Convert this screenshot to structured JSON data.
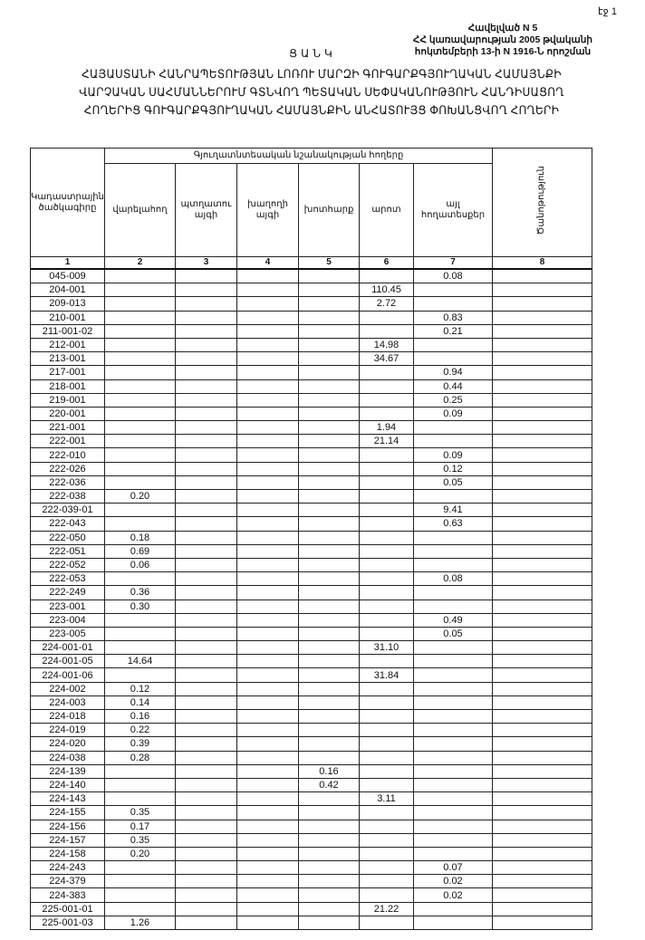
{
  "page_label": "էջ 1",
  "annex": {
    "line1": "Հավելված N 5",
    "line2": "ՀՀ կառավարության 2005 թվականի",
    "line3": "հոկտեմբերի 13-ի N 1916-Ն որոշման"
  },
  "doc_title": "ՑԱՆԿ",
  "heading": {
    "line1": "ՀԱՅԱՍՏԱՆԻ ՀԱՆՐԱՊԵՏՈՒԹՅԱՆ ԼՈՌՈՒ ՄԱՐԶԻ ԳՈՒԳԱՐՔԳՅՈՒՂԱԿԱՆ ՀԱՄԱՅՆՔԻ",
    "line2": "ՎԱՐՉԱԿԱՆ ՍԱՀՄԱՆՆԵՐՈՒՄ ԳՏՆՎՈՂ ՊԵՏԱԿԱՆ ՍԵՓԱԿԱՆՈՒԹՅՈՒՆ ՀԱՆԴԻՍԱՑՈՂ",
    "line3": "ՀՈՂԵՐԻՑ ԳՈՒԳԱՐՔԳՅՈՒՂԱԿԱՆ ՀԱՄԱՅՆՔԻՆ ԱՆՀԱՏՈՒՅՑ ՓՈԽԱՆՑՎՈՂ ՀՈՂԵՐԻ"
  },
  "table": {
    "group_header": "Գյուղատնտեսական նշանակության հողերը",
    "columns": [
      "Կադաստրային ծածկագիրը",
      "վարելահող",
      "պտղատու այգի",
      "խաղողի այգի",
      "խոտհարք",
      "արոտ",
      "այլ հողատեսքեր",
      "Ծանոթություն"
    ],
    "column_numbers": [
      "1",
      "2",
      "3",
      "4",
      "5",
      "6",
      "7",
      "8"
    ],
    "rows": [
      [
        "045-009",
        "",
        "",
        "",
        "",
        "",
        "0.08"
      ],
      [
        "204-001",
        "",
        "",
        "",
        "",
        "110.45",
        ""
      ],
      [
        "209-013",
        "",
        "",
        "",
        "",
        "2.72",
        ""
      ],
      [
        "210-001",
        "",
        "",
        "",
        "",
        "",
        "0.83"
      ],
      [
        "211-001-02",
        "",
        "",
        "",
        "",
        "",
        "0.21"
      ],
      [
        "212-001",
        "",
        "",
        "",
        "",
        "14.98",
        ""
      ],
      [
        "213-001",
        "",
        "",
        "",
        "",
        "34.67",
        ""
      ],
      [
        "217-001",
        "",
        "",
        "",
        "",
        "",
        "0.94"
      ],
      [
        "218-001",
        "",
        "",
        "",
        "",
        "",
        "0.44"
      ],
      [
        "219-001",
        "",
        "",
        "",
        "",
        "",
        "0.25"
      ],
      [
        "220-001",
        "",
        "",
        "",
        "",
        "",
        "0.09"
      ],
      [
        "221-001",
        "",
        "",
        "",
        "",
        "1.94",
        ""
      ],
      [
        "222-001",
        "",
        "",
        "",
        "",
        "21.14",
        ""
      ],
      [
        "222-010",
        "",
        "",
        "",
        "",
        "",
        "0.09"
      ],
      [
        "222-026",
        "",
        "",
        "",
        "",
        "",
        "0.12"
      ],
      [
        "222-036",
        "",
        "",
        "",
        "",
        "",
        "0.05"
      ],
      [
        "222-038",
        "0.20",
        "",
        "",
        "",
        "",
        ""
      ],
      [
        "222-039-01",
        "",
        "",
        "",
        "",
        "",
        "9.41"
      ],
      [
        "222-043",
        "",
        "",
        "",
        "",
        "",
        "0.63"
      ],
      [
        "222-050",
        "0.18",
        "",
        "",
        "",
        "",
        ""
      ],
      [
        "222-051",
        "0.69",
        "",
        "",
        "",
        "",
        ""
      ],
      [
        "222-052",
        "0.06",
        "",
        "",
        "",
        "",
        ""
      ],
      [
        "222-053",
        "",
        "",
        "",
        "",
        "",
        "0.08"
      ],
      [
        "222-249",
        "0.36",
        "",
        "",
        "",
        "",
        ""
      ],
      [
        "223-001",
        "0.30",
        "",
        "",
        "",
        "",
        ""
      ],
      [
        "223-004",
        "",
        "",
        "",
        "",
        "",
        "0.49"
      ],
      [
        "223-005",
        "",
        "",
        "",
        "",
        "",
        "0.05"
      ],
      [
        "224-001-01",
        "",
        "",
        "",
        "",
        "31.10",
        ""
      ],
      [
        "224-001-05",
        "14.64",
        "",
        "",
        "",
        "",
        ""
      ],
      [
        "224-001-06",
        "",
        "",
        "",
        "",
        "31.84",
        ""
      ],
      [
        "224-002",
        "0.12",
        "",
        "",
        "",
        "",
        ""
      ],
      [
        "224-003",
        "0.14",
        "",
        "",
        "",
        "",
        ""
      ],
      [
        "224-018",
        "0.16",
        "",
        "",
        "",
        "",
        ""
      ],
      [
        "224-019",
        "0.22",
        "",
        "",
        "",
        "",
        ""
      ],
      [
        "224-020",
        "0.39",
        "",
        "",
        "",
        "",
        ""
      ],
      [
        "224-038",
        "0.28",
        "",
        "",
        "",
        "",
        ""
      ],
      [
        "224-139",
        "",
        "",
        "",
        "0.16",
        "",
        ""
      ],
      [
        "224-140",
        "",
        "",
        "",
        "0.42",
        "",
        ""
      ],
      [
        "224-143",
        "",
        "",
        "",
        "",
        "3.11",
        ""
      ],
      [
        "224-155",
        "0.35",
        "",
        "",
        "",
        "",
        ""
      ],
      [
        "224-156",
        "0.17",
        "",
        "",
        "",
        "",
        ""
      ],
      [
        "224-157",
        "0.35",
        "",
        "",
        "",
        "",
        ""
      ],
      [
        "224-158",
        "0.20",
        "",
        "",
        "",
        "",
        ""
      ],
      [
        "224-243",
        "",
        "",
        "",
        "",
        "",
        "0.07"
      ],
      [
        "224-379",
        "",
        "",
        "",
        "",
        "",
        "0.02"
      ],
      [
        "224-383",
        "",
        "",
        "",
        "",
        "",
        "0.02"
      ],
      [
        "225-001-01",
        "",
        "",
        "",
        "",
        "21.22",
        ""
      ],
      [
        "225-001-03",
        "1.26",
        "",
        "",
        "",
        "",
        ""
      ]
    ]
  }
}
